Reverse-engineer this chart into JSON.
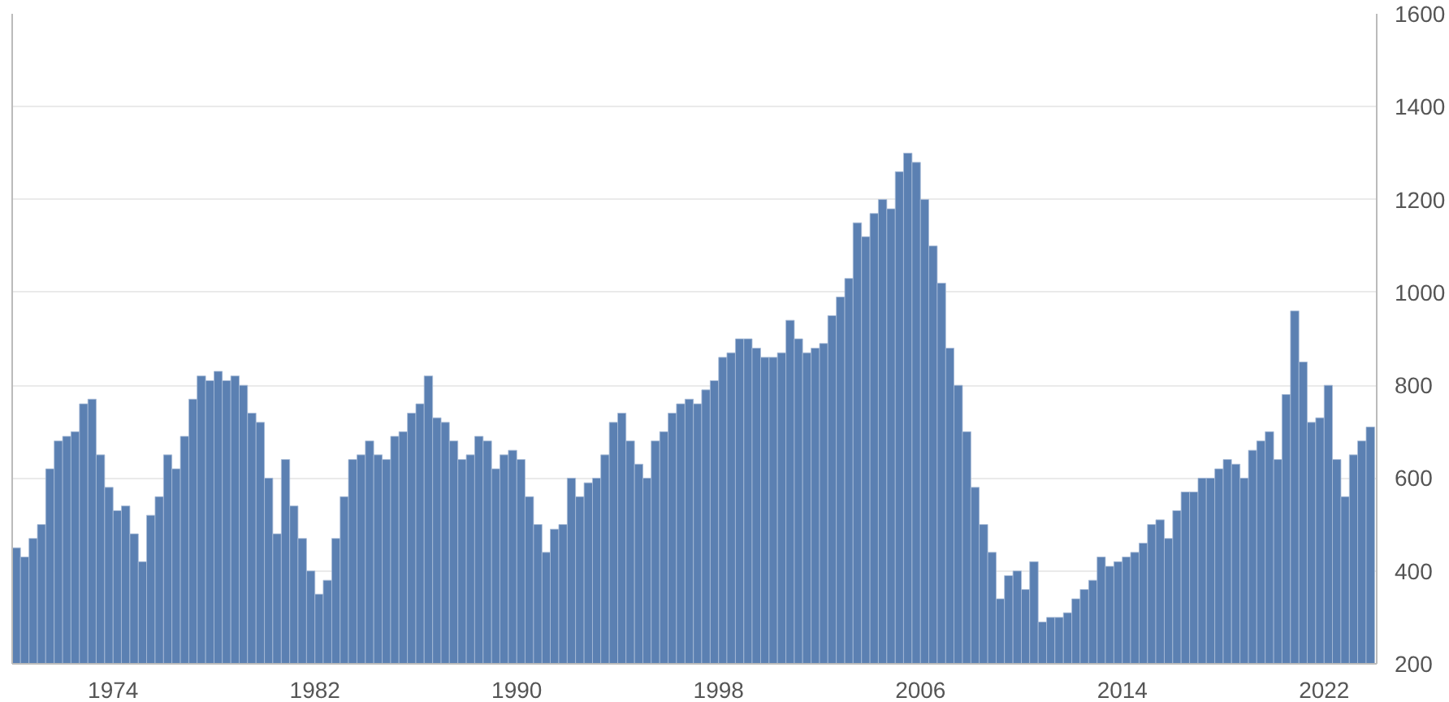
{
  "chart_data": {
    "type": "bar",
    "color": "#5b80b2",
    "grid": true,
    "xlim": [
      "1970-01",
      "2024-02"
    ],
    "xticks": [
      "1974",
      "1982",
      "1990",
      "1998",
      "2006",
      "2014",
      "2022"
    ],
    "ylim": [
      200,
      1600
    ],
    "yticks": [
      200,
      400,
      600,
      800,
      1000,
      1200,
      1400,
      1600
    ],
    "x": [
      "1970-01",
      "1970-05",
      "1970-09",
      "1971-01",
      "1971-05",
      "1971-09",
      "1972-01",
      "1972-05",
      "1972-09",
      "1973-01",
      "1973-05",
      "1973-09",
      "1974-01",
      "1974-05",
      "1974-09",
      "1975-01",
      "1975-05",
      "1975-09",
      "1976-01",
      "1976-05",
      "1976-09",
      "1977-01",
      "1977-05",
      "1977-09",
      "1978-01",
      "1978-05",
      "1978-09",
      "1979-01",
      "1979-05",
      "1979-09",
      "1980-01",
      "1980-05",
      "1980-09",
      "1981-01",
      "1981-05",
      "1981-09",
      "1982-01",
      "1982-05",
      "1982-09",
      "1983-01",
      "1983-05",
      "1983-09",
      "1984-01",
      "1984-05",
      "1984-09",
      "1985-01",
      "1985-05",
      "1985-09",
      "1986-01",
      "1986-05",
      "1986-09",
      "1987-01",
      "1987-05",
      "1987-09",
      "1988-01",
      "1988-05",
      "1988-09",
      "1989-01",
      "1989-05",
      "1989-09",
      "1990-01",
      "1990-05",
      "1990-09",
      "1991-01",
      "1991-05",
      "1991-09",
      "1992-01",
      "1992-05",
      "1992-09",
      "1993-01",
      "1993-05",
      "1993-09",
      "1994-01",
      "1994-05",
      "1994-09",
      "1995-01",
      "1995-05",
      "1995-09",
      "1996-01",
      "1996-05",
      "1996-09",
      "1997-01",
      "1997-05",
      "1997-09",
      "1998-01",
      "1998-05",
      "1998-09",
      "1999-01",
      "1999-05",
      "1999-09",
      "2000-01",
      "2000-05",
      "2000-09",
      "2001-01",
      "2001-05",
      "2001-09",
      "2002-01",
      "2002-05",
      "2002-09",
      "2003-01",
      "2003-05",
      "2003-09",
      "2004-01",
      "2004-05",
      "2004-09",
      "2005-01",
      "2005-05",
      "2005-09",
      "2006-01",
      "2006-05",
      "2006-09",
      "2007-01",
      "2007-05",
      "2007-09",
      "2008-01",
      "2008-05",
      "2008-09",
      "2009-01",
      "2009-05",
      "2009-09",
      "2010-01",
      "2010-05",
      "2010-09",
      "2011-01",
      "2011-05",
      "2011-09",
      "2012-01",
      "2012-05",
      "2012-09",
      "2013-01",
      "2013-05",
      "2013-09",
      "2014-01",
      "2014-05",
      "2014-09",
      "2015-01",
      "2015-05",
      "2015-09",
      "2016-01",
      "2016-05",
      "2016-09",
      "2017-01",
      "2017-05",
      "2017-09",
      "2018-01",
      "2018-05",
      "2018-09",
      "2019-01",
      "2019-05",
      "2019-09",
      "2020-01",
      "2020-05",
      "2020-09",
      "2021-01",
      "2021-05",
      "2021-09",
      "2022-01",
      "2022-05",
      "2022-09",
      "2023-01",
      "2023-05",
      "2023-09"
    ],
    "values": [
      450,
      430,
      470,
      500,
      620,
      680,
      690,
      700,
      760,
      770,
      650,
      580,
      530,
      540,
      480,
      420,
      520,
      560,
      650,
      620,
      690,
      770,
      820,
      810,
      830,
      810,
      820,
      800,
      740,
      720,
      600,
      480,
      640,
      540,
      470,
      400,
      350,
      380,
      470,
      560,
      640,
      650,
      680,
      650,
      640,
      690,
      700,
      740,
      760,
      820,
      730,
      720,
      680,
      640,
      650,
      690,
      680,
      620,
      650,
      660,
      640,
      560,
      500,
      440,
      490,
      500,
      600,
      560,
      590,
      600,
      650,
      720,
      740,
      680,
      630,
      600,
      680,
      700,
      740,
      760,
      770,
      760,
      790,
      810,
      860,
      870,
      900,
      900,
      880,
      860,
      860,
      870,
      940,
      900,
      870,
      880,
      890,
      950,
      990,
      1030,
      1150,
      1120,
      1170,
      1200,
      1180,
      1260,
      1300,
      1280,
      1200,
      1100,
      1020,
      880,
      800,
      700,
      580,
      500,
      440,
      340,
      390,
      400,
      360,
      420,
      290,
      300,
      300,
      310,
      340,
      360,
      380,
      430,
      410,
      420,
      430,
      440,
      460,
      500,
      510,
      470,
      530,
      570,
      570,
      600,
      600,
      620,
      640,
      630,
      600,
      660,
      680,
      700,
      640,
      780,
      960,
      850,
      720,
      730,
      800,
      640,
      560,
      650,
      680,
      710
    ]
  }
}
